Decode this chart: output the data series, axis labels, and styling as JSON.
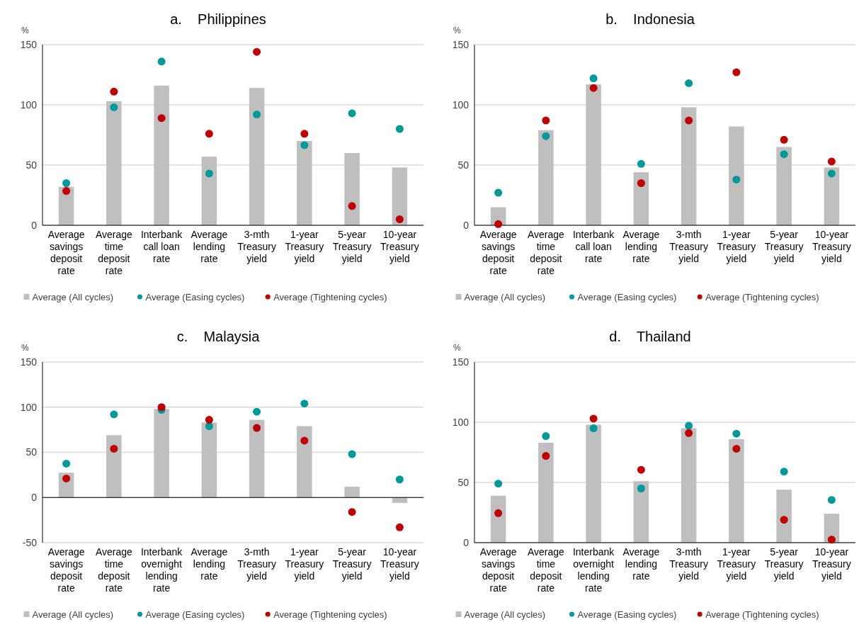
{
  "chart_data": [
    {
      "type": "bar",
      "title": "a.    Philippines",
      "ylabel": "%",
      "categories": [
        "Average savings deposit rate",
        "Average time deposit rate",
        "Interbank call loan rate",
        "Average lending rate",
        "3-mth Treasury yield",
        "1-year Treasury yield",
        "5-year Treasury yield",
        "10-year Treasury yield"
      ],
      "ylim": [
        0,
        150
      ],
      "yticks": [
        0,
        50,
        100,
        150
      ],
      "grid": "y",
      "legend": "bottom",
      "marker": "circle",
      "series": [
        {
          "name": "Average (All cycles)",
          "color": "#bfbfbf",
          "values": [
            32,
            103,
            116,
            57,
            114,
            70,
            60,
            48
          ]
        },
        {
          "name": "Average (Easing cycles)",
          "type": "scatter",
          "color": "#009999",
          "values": [
            35,
            98,
            136,
            43,
            92,
            66.5,
            93,
            80
          ]
        },
        {
          "name": "Average (Tightening cycles)",
          "type": "scatter",
          "color": "#c00000",
          "values": [
            28.5,
            111,
            89,
            76,
            144,
            76,
            16,
            5
          ]
        }
      ]
    },
    {
      "type": "bar",
      "title": "b.    Indonesia",
      "ylabel": "%",
      "categories": [
        "Average savings deposit rate",
        "Average time deposit rate",
        "Interbank call loan rate",
        "Average lending rate",
        "3-mth Treasury yield",
        "1-year Treasury yield",
        "5-year Treasury yield",
        "10-year Treasury yield"
      ],
      "ylim": [
        0,
        150
      ],
      "yticks": [
        0,
        50,
        100,
        150
      ],
      "grid": "y",
      "legend": "bottom",
      "marker": "circle",
      "series": [
        {
          "name": "Average (All cycles)",
          "color": "#bfbfbf",
          "values": [
            15,
            79,
            117,
            44,
            98,
            82,
            65,
            48
          ]
        },
        {
          "name": "Average (Easing cycles)",
          "type": "scatter",
          "color": "#009999",
          "values": [
            27,
            74,
            122,
            51,
            118,
            38,
            59,
            43
          ]
        },
        {
          "name": "Average (Tightening cycles)",
          "type": "scatter",
          "color": "#c00000",
          "values": [
            1,
            87,
            114,
            35,
            87,
            127,
            71,
            53
          ]
        }
      ]
    },
    {
      "type": "bar",
      "title": "c.    Malaysia",
      "ylabel": "%",
      "categories": [
        "Average savings deposit rate",
        "Average time deposit rate",
        "Interbank overnight lending rate",
        "Average lending rate",
        "3-mth Treasury yield",
        "1-year Treasury yield",
        "5-year Treasury yield",
        "10-year Treasury yield"
      ],
      "ylim": [
        -50,
        150
      ],
      "yticks": [
        -50,
        0,
        50,
        100,
        150
      ],
      "grid": "y",
      "legend": "bottom",
      "marker": "circle",
      "series": [
        {
          "name": "Average (All cycles)",
          "color": "#bfbfbf",
          "values": [
            27.5,
            69,
            98,
            83,
            86,
            79,
            12,
            -6
          ]
        },
        {
          "name": "Average (Easing cycles)",
          "type": "scatter",
          "color": "#009999",
          "values": [
            37.5,
            92,
            97,
            79,
            95,
            104,
            48,
            20
          ]
        },
        {
          "name": "Average (Tightening cycles)",
          "type": "scatter",
          "color": "#c00000",
          "values": [
            21,
            54,
            100,
            86,
            77,
            63,
            -16,
            -33
          ]
        }
      ]
    },
    {
      "type": "bar",
      "title": "d.    Thailand",
      "ylabel": "%",
      "categories": [
        "Average savings deposit rate",
        "Average time deposit rate",
        "Interbank overnight lending rate",
        "Average lending rate",
        "3-mth Treasury yield",
        "1-year Treasury yield",
        "5-year Treasury yield",
        "10-year Treasury yield"
      ],
      "ylim": [
        0,
        150
      ],
      "yticks": [
        0,
        50,
        100,
        150
      ],
      "grid": "y",
      "legend": "bottom",
      "marker": "circle",
      "series": [
        {
          "name": "Average (All cycles)",
          "color": "#bfbfbf",
          "values": [
            39,
            83,
            98,
            51,
            95,
            86,
            44,
            24
          ]
        },
        {
          "name": "Average (Easing cycles)",
          "type": "scatter",
          "color": "#009999",
          "values": [
            49,
            88.5,
            95,
            45,
            97,
            90.5,
            59,
            35.5
          ]
        },
        {
          "name": "Average (Tightening cycles)",
          "type": "scatter",
          "color": "#c00000",
          "values": [
            24.5,
            72,
            103,
            60.5,
            91,
            78,
            19,
            2.5
          ]
        }
      ]
    }
  ]
}
